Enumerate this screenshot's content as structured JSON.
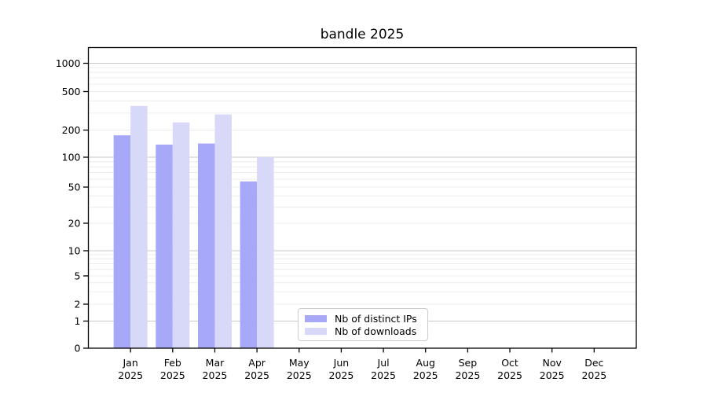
{
  "chart_data": {
    "type": "bar",
    "title": "bandle 2025",
    "categories": [
      "Jan",
      "Feb",
      "Mar",
      "Apr",
      "May",
      "Jun",
      "Jul",
      "Aug",
      "Sep",
      "Oct",
      "Nov",
      "Dec"
    ],
    "x_tick_second_line": "2025",
    "series": [
      {
        "name": "Nb of distinct IPs",
        "color": "#a8a8f8",
        "values": [
          175,
          138,
          142,
          57,
          null,
          null,
          null,
          null,
          null,
          null,
          null,
          null
        ]
      },
      {
        "name": "Nb of downloads",
        "color": "#d8d8f8",
        "values": [
          355,
          240,
          290,
          100,
          null,
          null,
          null,
          null,
          null,
          null,
          null,
          null
        ]
      }
    ],
    "yscale": "symlog",
    "y_ticks": [
      0,
      1,
      2,
      5,
      10,
      20,
      50,
      100,
      200,
      500,
      1000
    ],
    "ylim": [
      0,
      1500
    ],
    "xlabel": "",
    "ylabel": "",
    "grid": {
      "horizontal": true,
      "minor_color": "#ececec",
      "major_color": "#c9c9c9",
      "major_at": [
        1,
        10,
        100,
        1000
      ]
    },
    "legend_position": "inside plot, lower center-left",
    "axis_color": "#000000",
    "text_color": "#000000",
    "background": "#ffffff"
  }
}
